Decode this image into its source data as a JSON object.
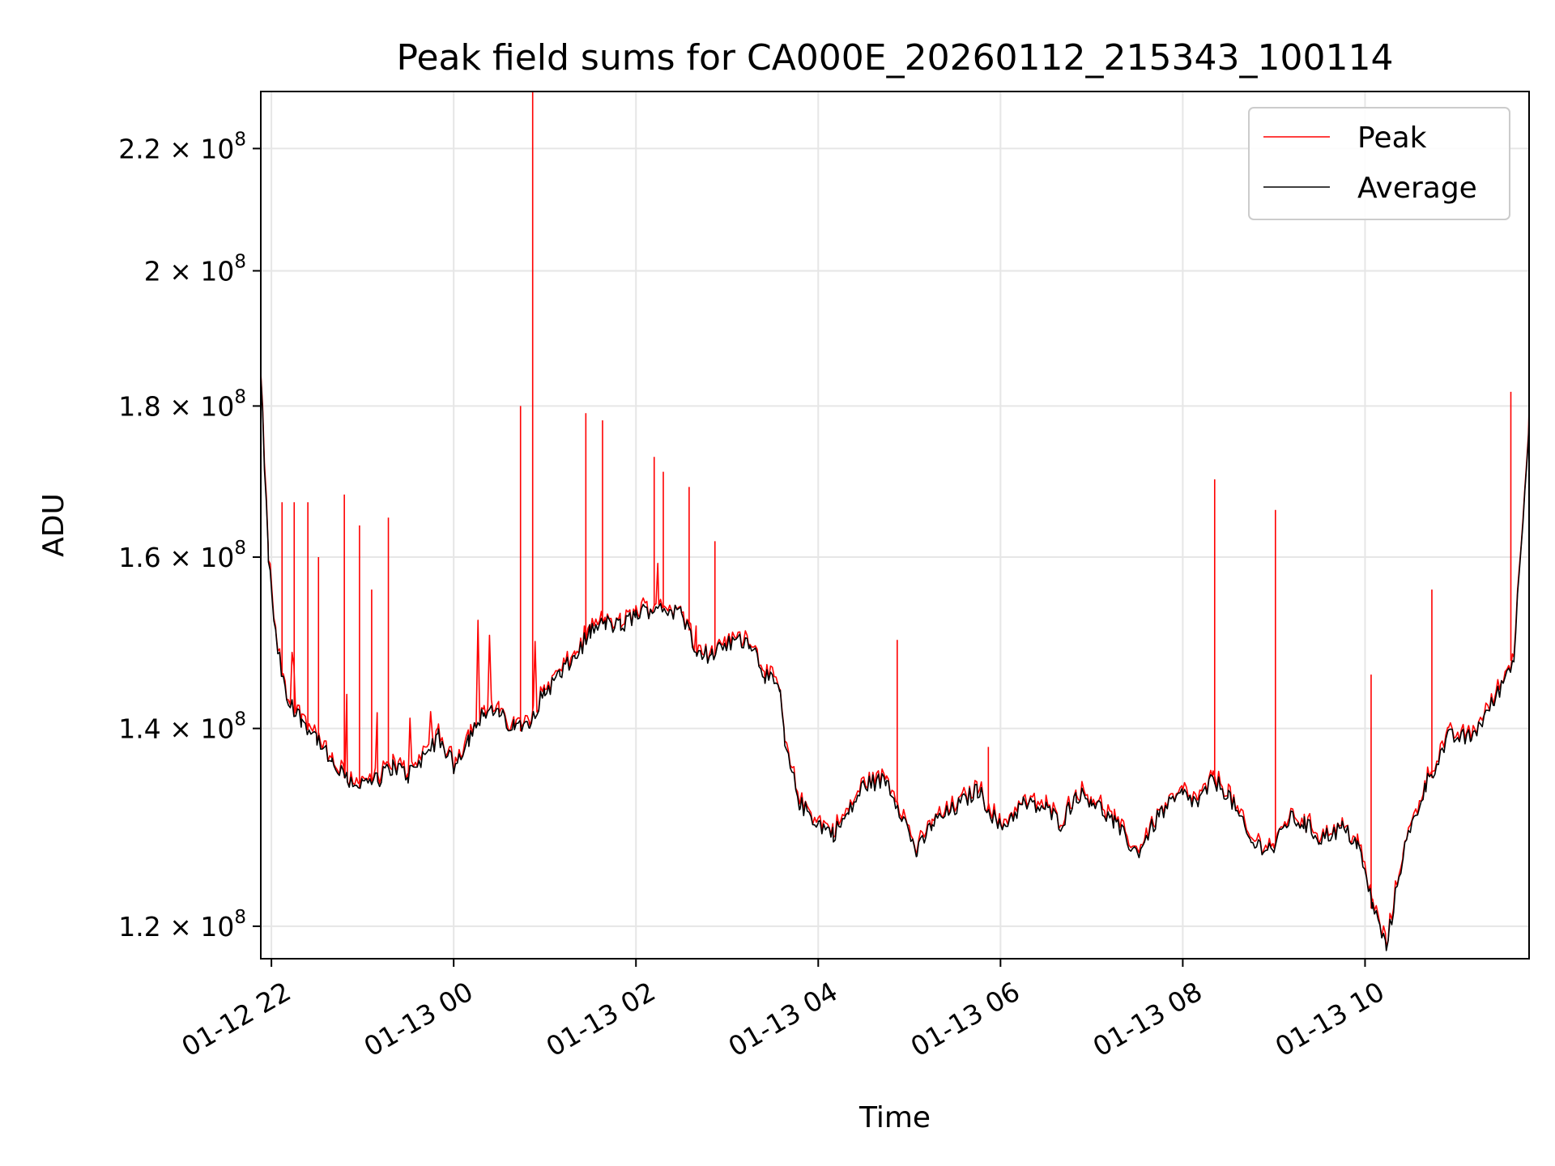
{
  "chart_data": {
    "type": "line",
    "title": "Peak field sums for CA000E_20260112_215343_100114",
    "xlabel": "Time",
    "ylabel": "ADU",
    "y_scale": "log",
    "xlim": [
      "2026-01-12 21:53",
      "2026-01-13 11:48"
    ],
    "ylim": [
      117000000,
      230000000
    ],
    "grid": true,
    "legend_position": "top-right",
    "x_ticks": [
      {
        "time": "2026-01-12 22:00",
        "label": "01-12 22"
      },
      {
        "time": "2026-01-13 00:00",
        "label": "01-13 00"
      },
      {
        "time": "2026-01-13 02:00",
        "label": "01-13 02"
      },
      {
        "time": "2026-01-13 04:00",
        "label": "01-13 04"
      },
      {
        "time": "2026-01-13 06:00",
        "label": "01-13 06"
      },
      {
        "time": "2026-01-13 08:00",
        "label": "01-13 08"
      },
      {
        "time": "2026-01-13 10:00",
        "label": "01-13 10"
      }
    ],
    "y_ticks": [
      {
        "value": 120000000,
        "mantissa": "1.2",
        "exp": "8"
      },
      {
        "value": 140000000,
        "mantissa": "1.4",
        "exp": "8"
      },
      {
        "value": 160000000,
        "mantissa": "1.6",
        "exp": "8"
      },
      {
        "value": 180000000,
        "mantissa": "1.8",
        "exp": "8"
      },
      {
        "value": 200000000,
        "mantissa": "2",
        "exp": "8"
      },
      {
        "value": 220000000,
        "mantissa": "2.2",
        "exp": "8"
      }
    ],
    "series": [
      {
        "name": "Peak",
        "color": "#ff0000"
      },
      {
        "name": "Average",
        "color": "#000000"
      }
    ],
    "average_points": [
      [
        "2026-01-12 21:53",
        184000000
      ],
      [
        "2026-01-12 21:58",
        160000000
      ],
      [
        "2026-01-12 22:03",
        150000000
      ],
      [
        "2026-01-12 22:10",
        143000000
      ],
      [
        "2026-01-12 22:20",
        141000000
      ],
      [
        "2026-01-12 22:30",
        139000000
      ],
      [
        "2026-01-12 22:40",
        136000000
      ],
      [
        "2026-01-12 22:50",
        134500000
      ],
      [
        "2026-01-12 23:00",
        134000000
      ],
      [
        "2026-01-12 23:10",
        134500000
      ],
      [
        "2026-01-12 23:20",
        136000000
      ],
      [
        "2026-01-12 23:30",
        135000000
      ],
      [
        "2026-01-12 23:40",
        137000000
      ],
      [
        "2026-01-12 23:50",
        139000000
      ],
      [
        "2026-01-13 00:00",
        136000000
      ],
      [
        "2026-01-13 00:10",
        139000000
      ],
      [
        "2026-01-13 00:20",
        142000000
      ],
      [
        "2026-01-13 00:30",
        141500000
      ],
      [
        "2026-01-13 00:40",
        140000000
      ],
      [
        "2026-01-13 00:50",
        141000000
      ],
      [
        "2026-01-13 01:00",
        144000000
      ],
      [
        "2026-01-13 01:10",
        146000000
      ],
      [
        "2026-01-13 01:20",
        148000000
      ],
      [
        "2026-01-13 01:30",
        151000000
      ],
      [
        "2026-01-13 01:40",
        152000000
      ],
      [
        "2026-01-13 01:50",
        151500000
      ],
      [
        "2026-01-13 02:00",
        153000000
      ],
      [
        "2026-01-13 02:15",
        154000000
      ],
      [
        "2026-01-13 02:30",
        153000000
      ],
      [
        "2026-01-13 02:40",
        149000000
      ],
      [
        "2026-01-13 02:50",
        148000000
      ],
      [
        "2026-01-13 03:00",
        149500000
      ],
      [
        "2026-01-13 03:15",
        150000000
      ],
      [
        "2026-01-13 03:25",
        146000000
      ],
      [
        "2026-01-13 03:35",
        144000000
      ],
      [
        "2026-01-13 03:38",
        138000000
      ],
      [
        "2026-01-13 03:48",
        132000000
      ],
      [
        "2026-01-13 04:00",
        130000000
      ],
      [
        "2026-01-13 04:10",
        129000000
      ],
      [
        "2026-01-13 04:20",
        131000000
      ],
      [
        "2026-01-13 04:30",
        134000000
      ],
      [
        "2026-01-13 04:45",
        134500000
      ],
      [
        "2026-01-13 04:55",
        131000000
      ],
      [
        "2026-01-13 05:05",
        127000000
      ],
      [
        "2026-01-13 05:15",
        130000000
      ],
      [
        "2026-01-13 05:30",
        131500000
      ],
      [
        "2026-01-13 05:45",
        133500000
      ],
      [
        "2026-01-13 06:00",
        129500000
      ],
      [
        "2026-01-13 06:15",
        132000000
      ],
      [
        "2026-01-13 06:30",
        131500000
      ],
      [
        "2026-01-13 06:40",
        130000000
      ],
      [
        "2026-01-13 06:50",
        133000000
      ],
      [
        "2026-01-13 07:00",
        132500000
      ],
      [
        "2026-01-13 07:15",
        130000000
      ],
      [
        "2026-01-13 07:30",
        127000000
      ],
      [
        "2026-01-13 07:45",
        131000000
      ],
      [
        "2026-01-13 08:00",
        133000000
      ],
      [
        "2026-01-13 08:10",
        132000000
      ],
      [
        "2026-01-13 08:20",
        134500000
      ],
      [
        "2026-01-13 08:30",
        133000000
      ],
      [
        "2026-01-13 08:45",
        128000000
      ],
      [
        "2026-01-13 09:00",
        127500000
      ],
      [
        "2026-01-13 09:10",
        130500000
      ],
      [
        "2026-01-13 09:20",
        130000000
      ],
      [
        "2026-01-13 09:30",
        128500000
      ],
      [
        "2026-01-13 09:45",
        129500000
      ],
      [
        "2026-01-13 09:55",
        128000000
      ],
      [
        "2026-01-13 10:05",
        122000000
      ],
      [
        "2026-01-13 10:14",
        118000000
      ],
      [
        "2026-01-13 10:25",
        127000000
      ],
      [
        "2026-01-13 10:40",
        134000000
      ],
      [
        "2026-01-13 10:55",
        139000000
      ],
      [
        "2026-01-13 11:10",
        139000000
      ],
      [
        "2026-01-13 11:25",
        143000000
      ],
      [
        "2026-01-13 11:38",
        148000000
      ],
      [
        "2026-01-13 11:48",
        178000000
      ]
    ],
    "peak_spikes": [
      [
        "2026-01-12 22:07",
        167000000
      ],
      [
        "2026-01-12 22:15",
        167000000
      ],
      [
        "2026-01-12 22:24",
        167000000
      ],
      [
        "2026-01-12 22:31",
        160000000
      ],
      [
        "2026-01-12 22:48",
        168000000
      ],
      [
        "2026-01-12 22:58",
        164000000
      ],
      [
        "2026-01-12 23:06",
        156000000
      ],
      [
        "2026-01-12 23:17",
        165000000
      ],
      [
        "2026-01-13 00:44",
        180000000
      ],
      [
        "2026-01-13 00:52",
        230000000
      ],
      [
        "2026-01-13 01:27",
        179000000
      ],
      [
        "2026-01-13 01:38",
        178000000
      ],
      [
        "2026-01-13 02:12",
        173000000
      ],
      [
        "2026-01-13 02:18",
        171000000
      ],
      [
        "2026-01-13 02:35",
        169000000
      ],
      [
        "2026-01-13 02:52",
        162000000
      ],
      [
        "2026-01-13 04:52",
        150000000
      ],
      [
        "2026-01-13 05:52",
        138000000
      ],
      [
        "2026-01-13 08:21",
        170000000
      ],
      [
        "2026-01-13 09:01",
        166000000
      ],
      [
        "2026-01-13 10:04",
        146000000
      ],
      [
        "2026-01-13 10:44",
        156000000
      ],
      [
        "2026-01-13 11:36",
        182000000
      ]
    ]
  }
}
